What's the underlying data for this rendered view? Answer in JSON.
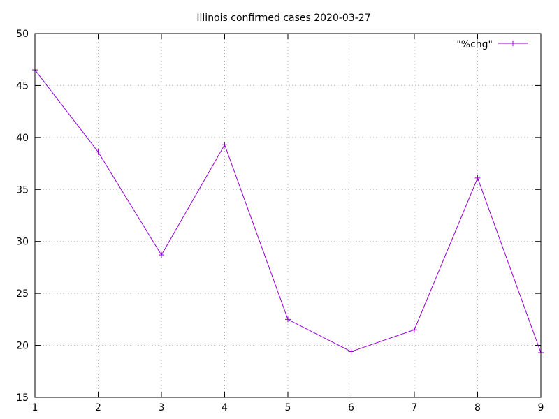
{
  "chart_data": {
    "type": "line",
    "title": "Illinois confirmed cases 2020-03-27",
    "xlabel": "",
    "ylabel": "",
    "xlim": [
      1,
      9
    ],
    "ylim": [
      15,
      50
    ],
    "xticks": [
      "1",
      "2",
      "3",
      "4",
      "5",
      "6",
      "7",
      "8",
      "9"
    ],
    "yticks": [
      "15",
      "20",
      "25",
      "30",
      "35",
      "40",
      "45",
      "50"
    ],
    "grid": true,
    "legend_position": "top-right",
    "series": [
      {
        "name": "\"%chg\"",
        "color": "#9400d3",
        "x": [
          1,
          2,
          3,
          4,
          5,
          6,
          7,
          8,
          9
        ],
        "y": [
          46.5,
          38.6,
          28.7,
          39.3,
          22.5,
          19.4,
          21.5,
          36.1,
          19.3
        ]
      }
    ]
  }
}
